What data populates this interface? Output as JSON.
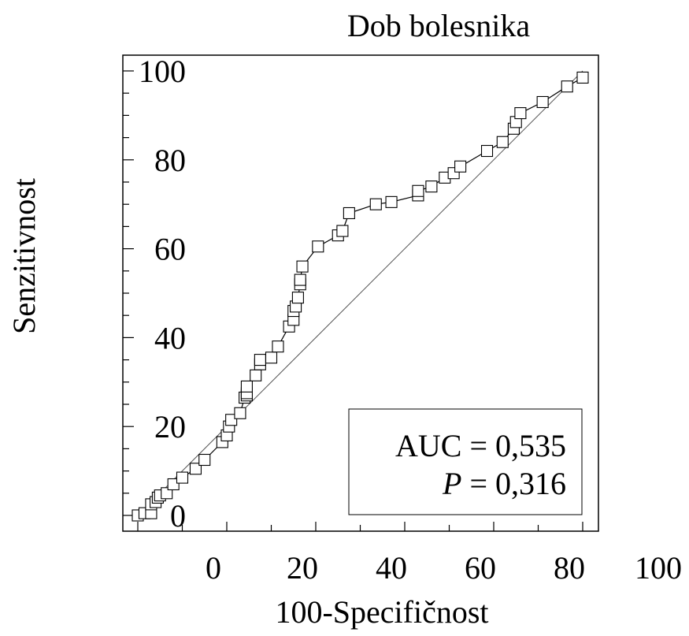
{
  "chart_data": {
    "type": "line",
    "title": "Dob bolesnika",
    "xlabel": "100-Specifičnost",
    "ylabel": "Senzitivnost",
    "xlim": [
      0,
      100
    ],
    "ylim": [
      0,
      100
    ],
    "xticks": [
      "0",
      "20",
      "40",
      "60",
      "80",
      "100"
    ],
    "yticks": [
      "0",
      "20",
      "40",
      "60",
      "80",
      "100"
    ],
    "grid": false,
    "annotation": {
      "auc_label": "AUC = 0,535",
      "p_symbol": "P",
      "p_value": "= 0,316"
    },
    "reference_line": {
      "x": [
        0,
        100
      ],
      "y": [
        0,
        100
      ]
    },
    "series": [
      {
        "marker": "square",
        "x": [
          0.0,
          1.5,
          3.0,
          3.0,
          4.0,
          4.5,
          5.0,
          6.5,
          8.0,
          10.0,
          13.0,
          15.0,
          19.0,
          20.0,
          20.5,
          21.0,
          23.0,
          24.0,
          24.5,
          24.5,
          24.5,
          26.5,
          27.5,
          27.5,
          30.0,
          31.5,
          34.0,
          35.0,
          35.0,
          35.5,
          36.0,
          36.5,
          36.5,
          37.0,
          40.5,
          45.0,
          46.0,
          47.5,
          53.5,
          57.0,
          63.0,
          63.0,
          66.0,
          69.0,
          71.0,
          72.5,
          78.5,
          82.0,
          84.5,
          85.0,
          86.0,
          91.0,
          96.5,
          100.0
        ],
        "y": [
          0.0,
          0.5,
          0.5,
          2.5,
          3.0,
          4.0,
          4.5,
          5.0,
          7.0,
          8.5,
          10.5,
          12.5,
          16.5,
          18.0,
          20.0,
          21.5,
          23.0,
          26.5,
          27.0,
          27.5,
          29.0,
          31.5,
          34.0,
          35.0,
          35.5,
          38.0,
          42.5,
          44.0,
          46.0,
          47.0,
          49.0,
          52.0,
          53.0,
          56.0,
          60.5,
          63.0,
          64.0,
          68.0,
          70.0,
          70.5,
          72.0,
          73.0,
          74.0,
          76.0,
          77.0,
          78.5,
          82.0,
          84.0,
          87.0,
          88.5,
          90.5,
          93.0,
          96.5,
          98.5
        ]
      }
    ]
  }
}
